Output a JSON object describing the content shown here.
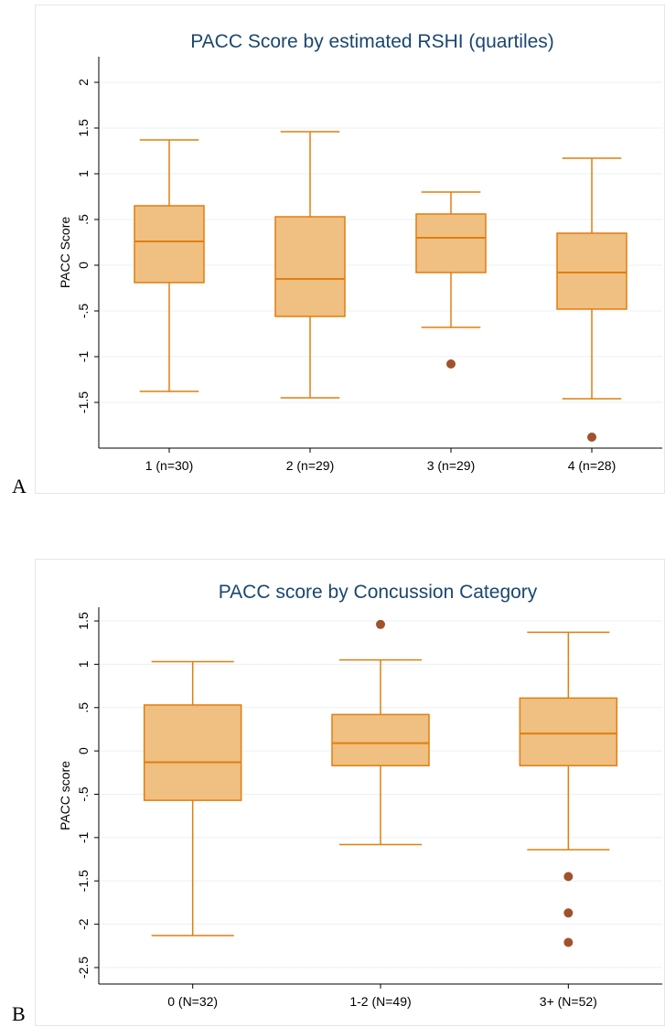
{
  "colors": {
    "box_fill": "#f0bf82",
    "box_stroke": "#e07f0f",
    "outlier": "#a0522d",
    "grid": "#eaf0f4"
  },
  "panels": [
    {
      "letter": "A"
    },
    {
      "letter": "B"
    }
  ],
  "chart_data": [
    {
      "type": "box",
      "title": "PACC Score by estimated RSHI (quartiles)",
      "xlabel": "",
      "ylabel": "PACC Score",
      "ylim": [
        -2.1,
        2.25
      ],
      "yticks": [
        2,
        1.5,
        1,
        0.5,
        0,
        -0.5,
        -1,
        -1.5
      ],
      "ytick_labels": [
        "2",
        "1.5",
        "1",
        ".5",
        "0",
        "-.5",
        "-1",
        "-1.5"
      ],
      "grid": true,
      "categories": [
        "1 (n=30)",
        "2 (n=29)",
        "3 (n=29)",
        "4 (n=28)"
      ],
      "boxes": [
        {
          "whisker_low": -1.38,
          "q1": -0.19,
          "median": 0.26,
          "q3": 0.65,
          "whisker_high": 1.37,
          "outliers": []
        },
        {
          "whisker_low": -1.45,
          "q1": -0.56,
          "median": -0.15,
          "q3": 0.53,
          "whisker_high": 1.46,
          "outliers": []
        },
        {
          "whisker_low": -0.68,
          "q1": -0.08,
          "median": 0.3,
          "q3": 0.56,
          "whisker_high": 0.8,
          "outliers": [
            -1.08
          ]
        },
        {
          "whisker_low": -1.46,
          "q1": -0.48,
          "median": -0.08,
          "q3": 0.35,
          "whisker_high": 1.17,
          "outliers": [
            -1.88
          ]
        }
      ]
    },
    {
      "type": "box",
      "title": "PACC score by Concussion Category",
      "xlabel": "",
      "ylabel": "PACC score",
      "ylim": [
        -2.7,
        1.7
      ],
      "yticks": [
        1.5,
        1,
        0.5,
        0,
        -0.5,
        -1,
        -1.5,
        -2,
        -2.5
      ],
      "ytick_labels": [
        "1.5",
        "1",
        ".5",
        "0",
        "-.5",
        "-1",
        "-1.5",
        "-2",
        "-2.5"
      ],
      "grid": true,
      "categories": [
        "0 (N=32)",
        "1-2 (N=49)",
        "3+ (N=52)"
      ],
      "boxes": [
        {
          "whisker_low": -2.13,
          "q1": -0.57,
          "median": -0.13,
          "q3": 0.53,
          "whisker_high": 1.03,
          "outliers": []
        },
        {
          "whisker_low": -1.08,
          "q1": -0.17,
          "median": 0.09,
          "q3": 0.42,
          "whisker_high": 1.05,
          "outliers": [
            1.46
          ]
        },
        {
          "whisker_low": -1.14,
          "q1": -0.17,
          "median": 0.2,
          "q3": 0.61,
          "whisker_high": 1.37,
          "outliers": [
            -1.45,
            -1.87,
            -2.21
          ]
        }
      ]
    }
  ]
}
